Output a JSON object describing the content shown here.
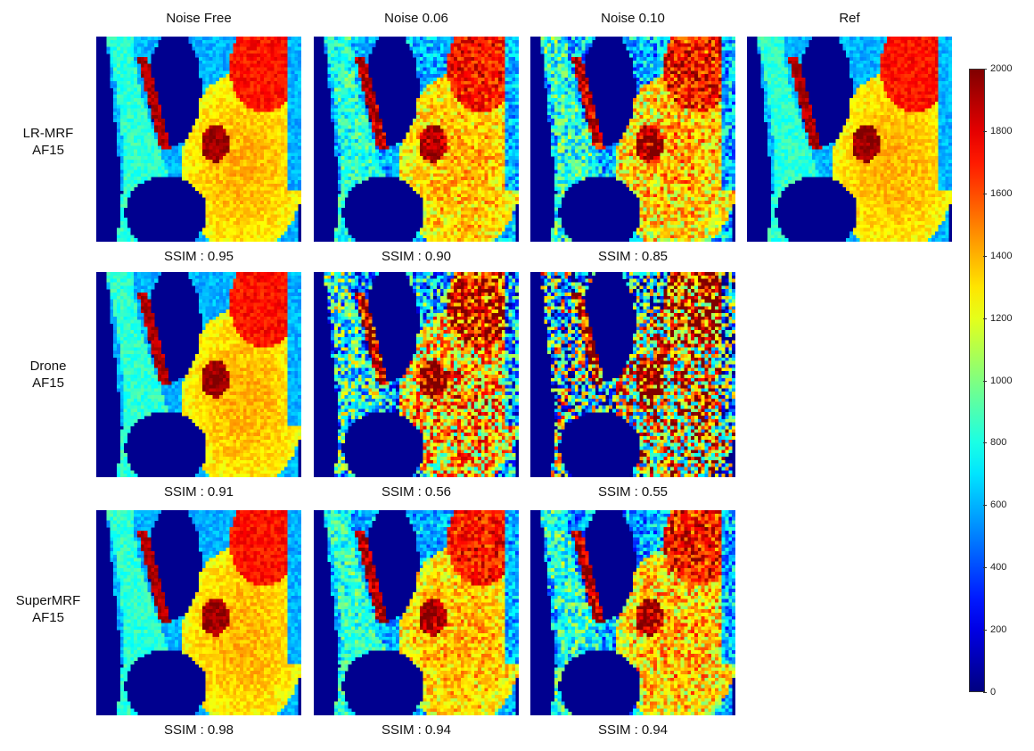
{
  "columns": [
    "Noise Free",
    "Noise 0.06",
    "Noise 0.10",
    "Ref"
  ],
  "rows": [
    {
      "label_line1": "LR-MRF",
      "label_line2": "AF15",
      "ssim_label": "SSIM",
      "ssim": [
        "0.95",
        "0.90",
        "0.85"
      ],
      "noise_level": [
        0.0,
        0.06,
        0.1
      ]
    },
    {
      "label_line1": "Drone",
      "label_line2": "AF15",
      "ssim_label": "SSIM",
      "ssim": [
        "0.91",
        "0.56",
        "0.55"
      ],
      "noise_level": [
        0.0,
        0.06,
        0.1
      ]
    },
    {
      "label_line1": "SuperMRF",
      "label_line2": "AF15",
      "ssim_label": "SSIM",
      "ssim": [
        "0.98",
        "0.94",
        "0.94"
      ],
      "noise_level": [
        0.0,
        0.06,
        0.1
      ]
    }
  ],
  "colorbar": {
    "colormap": "jet",
    "min": 0,
    "max": 2000,
    "ticks": [
      "2000",
      "1800",
      "1600",
      "1400",
      "1200",
      "1000",
      "800",
      "600",
      "400",
      "200",
      "0"
    ]
  },
  "colors": {
    "background_map": "#00008f"
  }
}
